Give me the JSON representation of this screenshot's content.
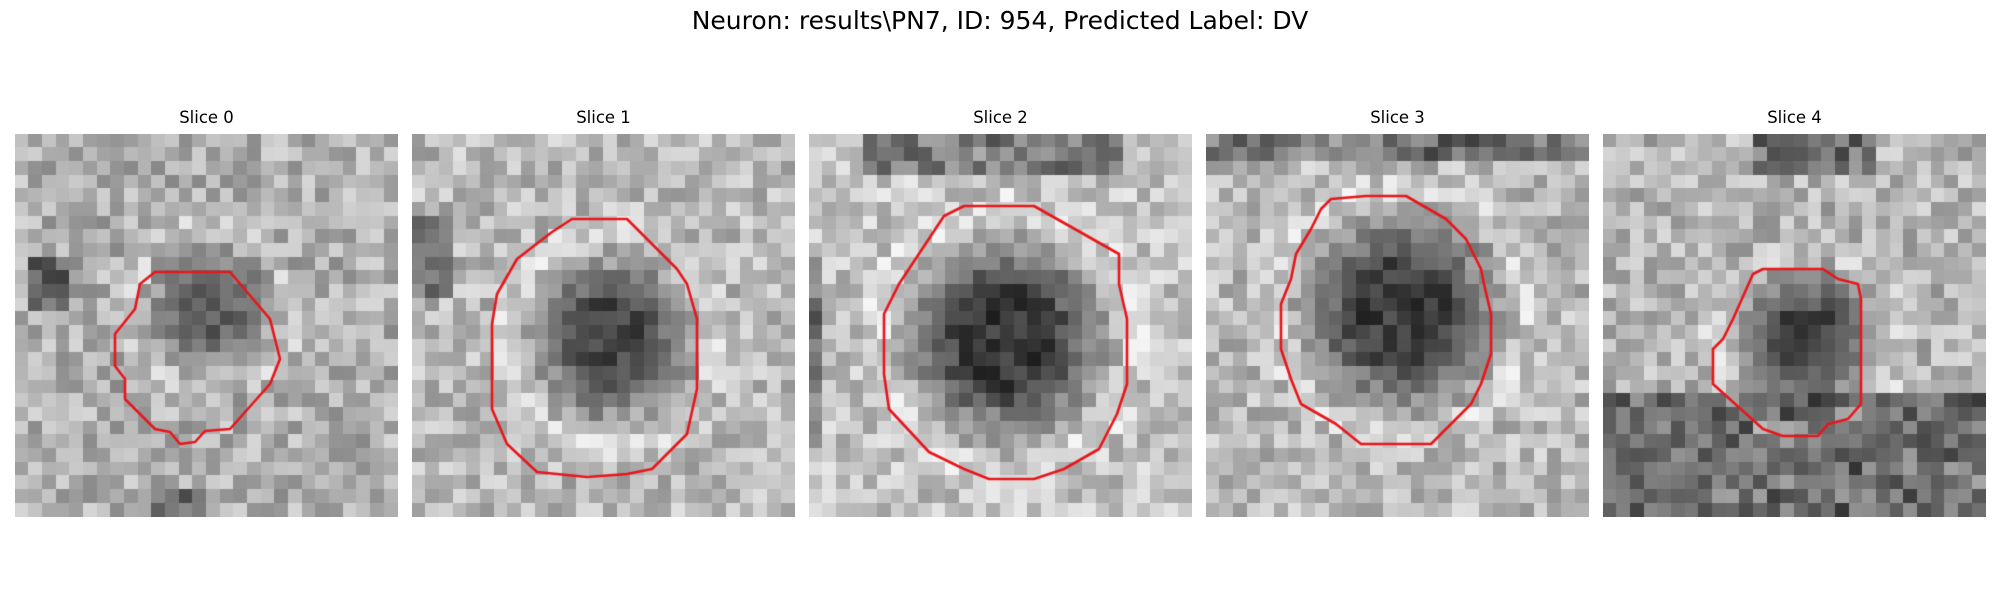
{
  "figure": {
    "title": "Neuron: results\\PN7, ID: 954, Predicted Label: DV"
  },
  "contour_color": "#e8161b",
  "panels": [
    {
      "title": "Slice 0",
      "image": "grayscale-cell-slice-with-red-contour"
    },
    {
      "title": "Slice 1",
      "image": "grayscale-cell-slice-with-red-contour"
    },
    {
      "title": "Slice 2",
      "image": "grayscale-cell-slice-with-red-contour"
    },
    {
      "title": "Slice 3",
      "image": "grayscale-cell-slice-with-red-contour"
    },
    {
      "title": "Slice 4",
      "image": "grayscale-cell-slice-with-red-contour"
    }
  ]
}
